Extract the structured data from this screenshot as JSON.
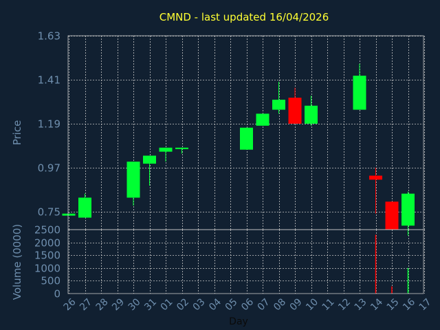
{
  "chart_data": [
    {
      "type": "candlestick",
      "title": "CMND - last updated 16/04/2026",
      "ylabel": "Price",
      "xlabel": "Day",
      "ylim": [
        0.66,
        1.63
      ],
      "yticks": [
        "0.75",
        "0.97",
        "1.19",
        "1.41",
        "1.63"
      ],
      "grid": true,
      "colors": {
        "background": "#112031",
        "up": "#00ff33",
        "down": "#ff0000",
        "title": "#ffff33",
        "axis_text": "#6f8fae",
        "grid": "#c8c8c8"
      },
      "candles": [
        {
          "day": "26",
          "open": 0.73,
          "close": 0.74,
          "high": 0.74,
          "low": 0.73
        },
        {
          "day": "27",
          "open": 0.72,
          "close": 0.82,
          "high": 0.84,
          "low": 0.72
        },
        {
          "day": "30",
          "open": 0.82,
          "close": 1.0,
          "high": 1.0,
          "low": 0.78
        },
        {
          "day": "31",
          "open": 0.99,
          "close": 1.03,
          "high": 1.03,
          "low": 0.88
        },
        {
          "day": "01",
          "open": 1.05,
          "close": 1.07,
          "high": 1.07,
          "low": 1.0
        },
        {
          "day": "02",
          "open": 1.07,
          "close": 1.07,
          "high": 1.07,
          "low": 1.04
        },
        {
          "day": "06",
          "open": 1.06,
          "close": 1.17,
          "high": 1.17,
          "low": 1.06
        },
        {
          "day": "07",
          "open": 1.18,
          "close": 1.24,
          "high": 1.24,
          "low": 1.18
        },
        {
          "day": "08",
          "open": 1.26,
          "close": 1.31,
          "high": 1.4,
          "low": 1.24
        },
        {
          "day": "09",
          "open": 1.32,
          "close": 1.19,
          "high": 1.37,
          "low": 1.19
        },
        {
          "day": "10",
          "open": 1.19,
          "close": 1.28,
          "high": 1.33,
          "low": 1.18
        },
        {
          "day": "13",
          "open": 1.26,
          "close": 1.43,
          "high": 1.49,
          "low": 1.26
        },
        {
          "day": "14",
          "open": 0.93,
          "close": 0.91,
          "high": 0.97,
          "low": 0.74
        },
        {
          "day": "15",
          "open": 0.8,
          "close": 0.66,
          "high": 0.8,
          "low": 0.66
        },
        {
          "day": "16",
          "open": 0.68,
          "close": 0.84,
          "high": 0.85,
          "low": 0.63
        }
      ]
    },
    {
      "type": "bar",
      "ylabel": "Volume (0000)",
      "xlabel": "Day",
      "ylim": [
        0,
        2500
      ],
      "yticks": [
        "0",
        "500",
        "1000",
        "1500",
        "2000",
        "2500"
      ],
      "grid": true,
      "categories": [
        "26",
        "27",
        "28",
        "29",
        "30",
        "31",
        "01",
        "02",
        "03",
        "04",
        "05",
        "06",
        "07",
        "08",
        "09",
        "10",
        "11",
        "12",
        "13",
        "14",
        "15",
        "16",
        "17"
      ],
      "bars": [
        {
          "day": "14",
          "value": 2300,
          "direction": "down"
        },
        {
          "day": "15",
          "value": 280,
          "direction": "down"
        },
        {
          "day": "16",
          "value": 1000,
          "direction": "up"
        }
      ]
    }
  ]
}
